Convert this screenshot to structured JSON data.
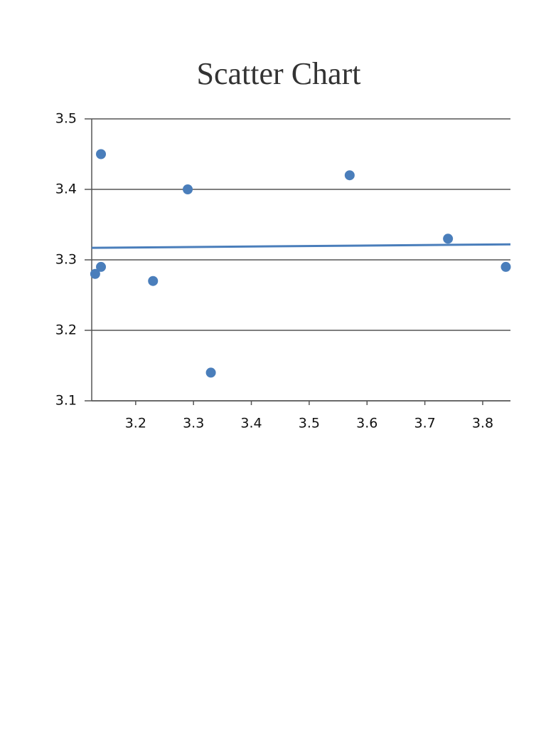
{
  "chart_data": {
    "type": "scatter",
    "title": "Scatter Chart",
    "series": [
      {
        "color": "#4a7ebb",
        "x": [
          3.14,
          3.13,
          3.14,
          3.23,
          3.29,
          3.33,
          3.57,
          3.74,
          3.84
        ],
        "values": [
          3.45,
          3.28,
          3.29,
          3.27,
          3.4,
          3.14,
          3.42,
          3.33,
          3.29
        ]
      }
    ],
    "trendline": {
      "color": "#4a7ebb",
      "x": [
        3.124,
        3.848
      ],
      "values": [
        3.317,
        3.322
      ]
    },
    "xlim": [
      3.124,
      3.848
    ],
    "xticks": [
      3.2,
      3.3,
      3.4,
      3.5,
      3.6,
      3.7,
      3.8
    ],
    "ylim": [
      3.1,
      3.5
    ],
    "yticks": [
      3.1,
      3.2,
      3.3,
      3.4,
      3.5
    ],
    "grid": true
  }
}
